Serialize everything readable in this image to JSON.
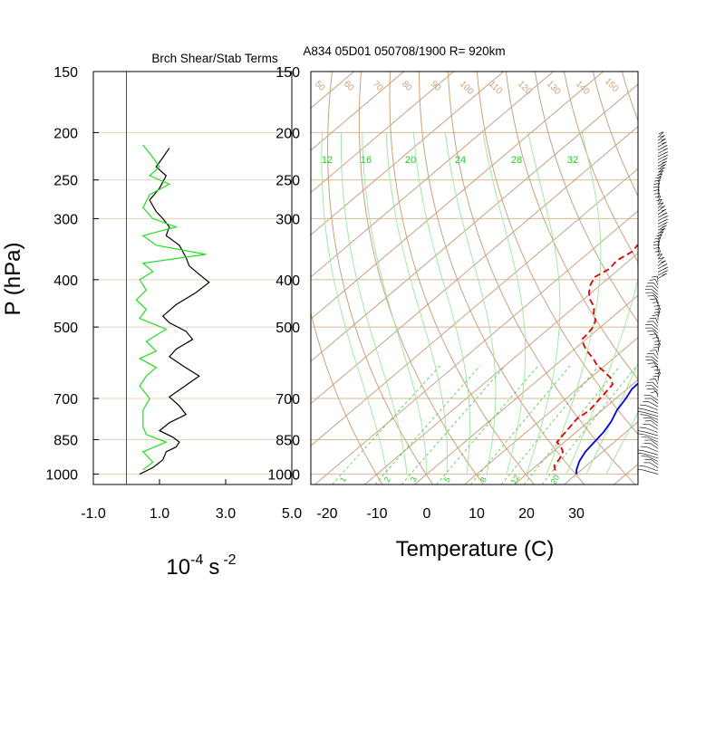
{
  "header": {
    "panel_title": "Brch Shear/Stab Terms",
    "run_title": "A834 05D01 050708/1900 R= 920km"
  },
  "chart_data": [
    {
      "type": "line",
      "title": "Brch Shear/Stab Terms",
      "xlabel": "10",
      "xlabel_exp": "-4",
      "xlabel_unit": "s",
      "xlabel_unit_exp": "-2",
      "ylabel": "P (hPa)",
      "x_ticks": [
        "-1.0",
        "1.0",
        "3.0",
        "5.0"
      ],
      "xlim": [
        -1.0,
        5.0
      ],
      "y_ticks": [
        "150",
        "200",
        "250",
        "300",
        "400",
        "500",
        "700",
        "850",
        "1000"
      ],
      "ylim": [
        1050,
        150
      ],
      "y_scale": "log",
      "series": [
        {
          "color": "#000000",
          "points": [
            [
              1.3,
              215
            ],
            [
              1.1,
              225
            ],
            [
              0.9,
              235
            ],
            [
              1.2,
              245
            ],
            [
              1.0,
              260
            ],
            [
              0.7,
              275
            ],
            [
              0.9,
              290
            ],
            [
              1.1,
              300
            ],
            [
              1.3,
              312
            ],
            [
              1.2,
              325
            ],
            [
              1.6,
              340
            ],
            [
              1.8,
              360
            ],
            [
              1.9,
              375
            ],
            [
              2.2,
              390
            ],
            [
              2.5,
              405
            ],
            [
              2.1,
              425
            ],
            [
              1.5,
              450
            ],
            [
              1.1,
              475
            ],
            [
              1.3,
              490
            ],
            [
              1.8,
              510
            ],
            [
              2.0,
              530
            ],
            [
              1.5,
              555
            ],
            [
              1.3,
              575
            ],
            [
              1.7,
              600
            ],
            [
              2.2,
              630
            ],
            [
              1.7,
              665
            ],
            [
              1.3,
              695
            ],
            [
              1.6,
              725
            ],
            [
              1.8,
              755
            ],
            [
              1.3,
              785
            ],
            [
              1.0,
              815
            ],
            [
              1.4,
              840
            ],
            [
              1.6,
              860
            ],
            [
              1.5,
              880
            ],
            [
              1.2,
              900
            ],
            [
              1.1,
              935
            ],
            [
              0.8,
              970
            ],
            [
              0.4,
              1000
            ]
          ]
        },
        {
          "color": "#22dd22",
          "points": [
            [
              0.5,
              212
            ],
            [
              0.8,
              225
            ],
            [
              1.0,
              235
            ],
            [
              0.7,
              245
            ],
            [
              1.3,
              255
            ],
            [
              0.7,
              268
            ],
            [
              0.5,
              285
            ],
            [
              0.8,
              300
            ],
            [
              1.5,
              312
            ],
            [
              0.5,
              325
            ],
            [
              0.9,
              340
            ],
            [
              2.4,
              355
            ],
            [
              0.5,
              370
            ],
            [
              0.8,
              385
            ],
            [
              0.4,
              400
            ],
            [
              0.6,
              420
            ],
            [
              0.3,
              440
            ],
            [
              0.6,
              460
            ],
            [
              0.4,
              480
            ],
            [
              1.2,
              505
            ],
            [
              0.6,
              535
            ],
            [
              0.9,
              560
            ],
            [
              0.4,
              580
            ],
            [
              0.9,
              605
            ],
            [
              0.6,
              630
            ],
            [
              0.4,
              660
            ],
            [
              0.7,
              700
            ],
            [
              0.5,
              740
            ],
            [
              0.5,
              800
            ],
            [
              0.6,
              830
            ],
            [
              1.2,
              860
            ],
            [
              0.5,
              900
            ],
            [
              0.8,
              945
            ],
            [
              0.5,
              980
            ]
          ]
        }
      ]
    },
    {
      "type": "line",
      "subtype": "skew-t",
      "title": "",
      "xlabel": "Temperature (C)",
      "x_ticks": [
        "-20",
        "-10",
        "0",
        "10",
        "20",
        "30"
      ],
      "xlim": [
        -24,
        43
      ],
      "y_ticks": [
        "150",
        "200",
        "250",
        "300",
        "400",
        "500",
        "700",
        "850",
        "1000"
      ],
      "ylim": [
        1050,
        150
      ],
      "y_scale": "log",
      "dry_adiabat_labels": [
        "50",
        "60",
        "70",
        "80",
        "90",
        "100",
        "110",
        "120",
        "130",
        "140",
        "150"
      ],
      "mixing_ratio_top_labels": [
        "12",
        "16",
        "20",
        "24",
        "28",
        "32"
      ],
      "mixing_ratio_bottom_labels": [
        "1",
        "2",
        "3",
        "5",
        "8",
        "12",
        "20"
      ],
      "right_axis_labels": [
        "-10",
        "0",
        "10",
        "20",
        "30"
      ],
      "series": [
        {
          "name": "",
          "color": "#0000dd",
          "dash": "solid",
          "points": [
            [
              1.0,
              205
            ],
            [
              2.0,
              220
            ],
            [
              3.2,
              235
            ],
            [
              4.5,
              250
            ],
            [
              6.0,
              265
            ],
            [
              7.5,
              280
            ],
            [
              9.0,
              300
            ],
            [
              9.8,
              320
            ],
            [
              10.8,
              340
            ],
            [
              12.0,
              360
            ],
            [
              13.0,
              380
            ],
            [
              13.2,
              400
            ],
            [
              13.0,
              420
            ],
            [
              13.5,
              440
            ],
            [
              14.5,
              460
            ],
            [
              15.5,
              480
            ],
            [
              17.0,
              500
            ],
            [
              18.5,
              525
            ],
            [
              19.0,
              550
            ],
            [
              20.0,
              580
            ],
            [
              20.5,
              610
            ],
            [
              20.8,
              640
            ],
            [
              21.0,
              670
            ],
            [
              22.0,
              700
            ],
            [
              23.0,
              740
            ],
            [
              24.5,
              780
            ],
            [
              25.5,
              820
            ],
            [
              26.0,
              860
            ],
            [
              26.5,
              900
            ],
            [
              27.5,
              940
            ],
            [
              29.0,
              980
            ],
            [
              30.0,
              1000
            ]
          ]
        },
        {
          "name": "",
          "color": "#dd0000",
          "dash": "dashed",
          "points": [
            [
              -8.0,
              220
            ],
            [
              -7.0,
              235
            ],
            [
              -6.5,
              250
            ],
            [
              -7.0,
              262
            ],
            [
              -7.5,
              272
            ],
            [
              -9.5,
              285
            ],
            [
              -10.5,
              300
            ],
            [
              -11.0,
              315
            ],
            [
              -10.0,
              325
            ],
            [
              -12.0,
              340
            ],
            [
              -11.5,
              350
            ],
            [
              -12.5,
              365
            ],
            [
              -12.0,
              380
            ],
            [
              -13.0,
              395
            ],
            [
              -12.0,
              410
            ],
            [
              -10.5,
              425
            ],
            [
              -8.5,
              440
            ],
            [
              -6.0,
              455
            ],
            [
              -4.5,
              470
            ],
            [
              -2.5,
              485
            ],
            [
              -1.5,
              500
            ],
            [
              -1.0,
              515
            ],
            [
              -0.8,
              530
            ],
            [
              1.0,
              545
            ],
            [
              3.0,
              560
            ],
            [
              6.0,
              580
            ],
            [
              8.5,
              600
            ],
            [
              11.0,
              615
            ],
            [
              14.0,
              635
            ],
            [
              16.0,
              655
            ],
            [
              16.5,
              680
            ],
            [
              17.0,
              710
            ],
            [
              17.5,
              740
            ],
            [
              17.0,
              770
            ],
            [
              17.5,
              800
            ],
            [
              18.0,
              830
            ],
            [
              18.5,
              860
            ],
            [
              20.5,
              880
            ],
            [
              22.0,
              900
            ],
            [
              23.0,
              930
            ],
            [
              23.5,
              960
            ],
            [
              25.0,
              985
            ],
            [
              25.5,
              1000
            ]
          ]
        }
      ]
    }
  ]
}
